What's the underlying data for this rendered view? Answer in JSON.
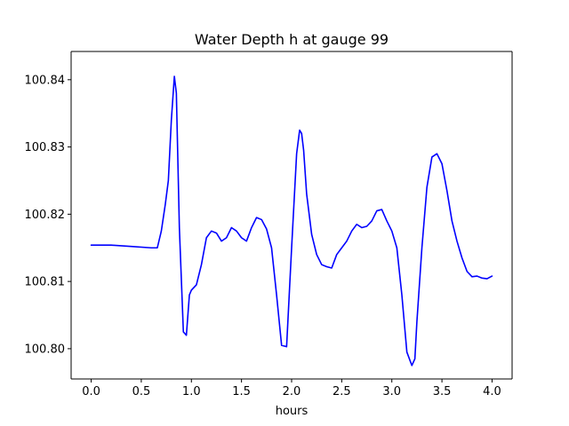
{
  "chart_data": {
    "type": "line",
    "title": "Water Depth h at gauge 99",
    "xlabel": "hours",
    "ylabel": "",
    "xlim": [
      -0.2,
      4.2
    ],
    "ylim": [
      100.7955,
      100.8442
    ],
    "xticks": [
      0.0,
      0.5,
      1.0,
      1.5,
      2.0,
      2.5,
      3.0,
      3.5,
      4.0
    ],
    "xtick_labels": [
      "0.0",
      "0.5",
      "1.0",
      "1.5",
      "2.0",
      "2.5",
      "3.0",
      "3.5",
      "4.0"
    ],
    "yticks": [
      100.8,
      100.81,
      100.82,
      100.83,
      100.84
    ],
    "ytick_labels": [
      "100.80",
      "100.81",
      "100.82",
      "100.83",
      "100.84"
    ],
    "grid": false,
    "legend": "none",
    "series": [
      {
        "color": "#0000ff",
        "x": [
          0.0,
          0.2,
          0.4,
          0.6,
          0.66,
          0.7,
          0.74,
          0.77,
          0.8,
          0.83,
          0.85,
          0.88,
          0.92,
          0.95,
          0.98,
          1.0,
          1.05,
          1.1,
          1.15,
          1.2,
          1.25,
          1.3,
          1.35,
          1.4,
          1.45,
          1.5,
          1.55,
          1.6,
          1.65,
          1.7,
          1.75,
          1.8,
          1.85,
          1.9,
          1.95,
          2.0,
          2.05,
          2.08,
          2.1,
          2.12,
          2.15,
          2.2,
          2.25,
          2.3,
          2.35,
          2.4,
          2.45,
          2.5,
          2.55,
          2.6,
          2.65,
          2.7,
          2.75,
          2.8,
          2.85,
          2.9,
          2.95,
          3.0,
          3.05,
          3.1,
          3.15,
          3.2,
          3.23,
          3.25,
          3.3,
          3.35,
          3.4,
          3.45,
          3.5,
          3.55,
          3.6,
          3.65,
          3.7,
          3.75,
          3.8,
          3.85,
          3.9,
          3.95,
          4.0
        ],
        "y": [
          100.8154,
          100.8154,
          100.8152,
          100.815,
          100.815,
          100.8175,
          100.8215,
          100.825,
          100.834,
          100.8405,
          100.838,
          100.818,
          100.8025,
          100.802,
          100.808,
          100.8087,
          100.8095,
          100.8125,
          100.8165,
          100.8175,
          100.8172,
          100.816,
          100.8165,
          100.818,
          100.8175,
          100.8165,
          100.816,
          100.818,
          100.8195,
          100.8192,
          100.8178,
          100.815,
          100.808,
          100.8005,
          100.8003,
          100.815,
          100.829,
          100.8325,
          100.832,
          100.8295,
          100.823,
          100.817,
          100.814,
          100.8125,
          100.8122,
          100.812,
          100.814,
          100.815,
          100.816,
          100.8175,
          100.8185,
          100.818,
          100.8182,
          100.819,
          100.8205,
          100.8207,
          100.819,
          100.8175,
          100.815,
          100.808,
          100.7995,
          100.7975,
          100.7985,
          100.804,
          100.815,
          100.824,
          100.8285,
          100.829,
          100.8275,
          100.8235,
          100.819,
          100.816,
          100.8135,
          100.8115,
          100.8107,
          100.8108,
          100.8105,
          100.8104,
          100.8108
        ]
      }
    ]
  }
}
